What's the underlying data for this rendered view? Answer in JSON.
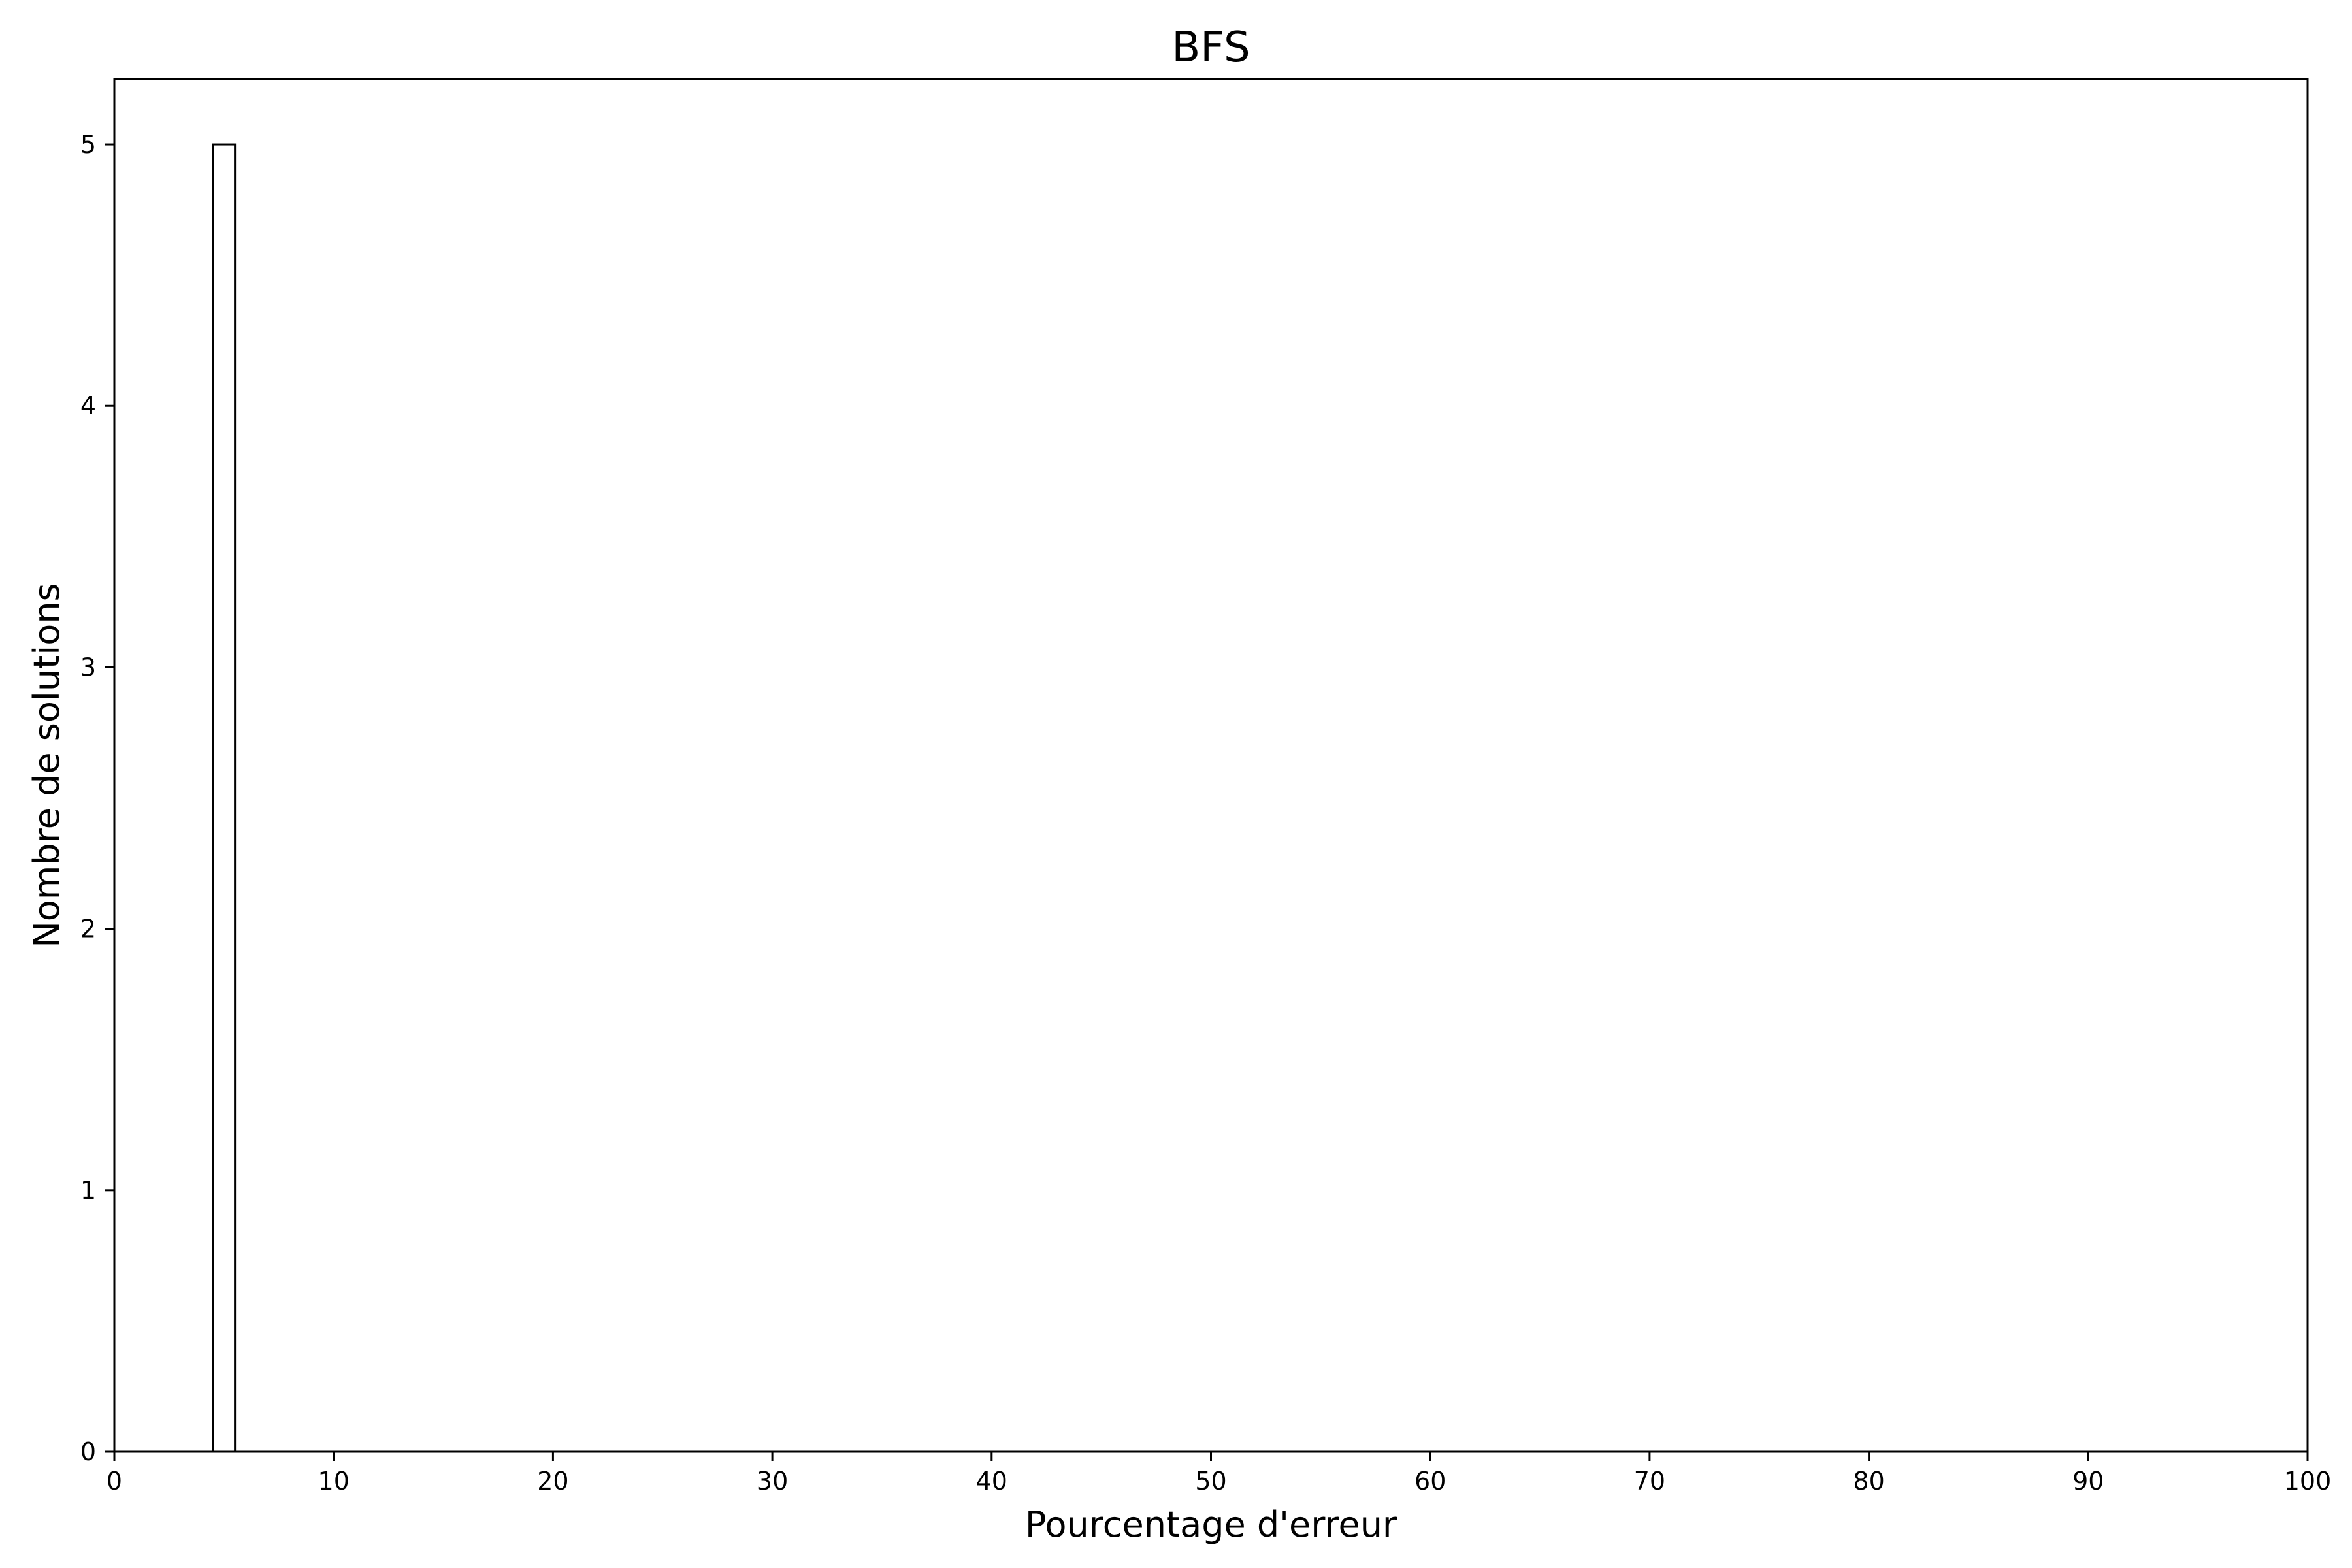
{
  "chart_data": {
    "type": "bar",
    "title": "BFS",
    "xlabel": "Pourcentage d'erreur",
    "ylabel": "Nombre de solutions",
    "xlim": [
      0,
      100
    ],
    "ylim": [
      0,
      5.25
    ],
    "xticks": [
      0,
      10,
      20,
      30,
      40,
      50,
      60,
      70,
      80,
      90,
      100
    ],
    "yticks": [
      0,
      1,
      2,
      3,
      4,
      5
    ],
    "bins": [
      {
        "x_start": 4.5,
        "x_end": 5.5,
        "value": 5
      }
    ],
    "bar_fill": "#ffffff",
    "bar_edge": "#000000",
    "grid": false,
    "legend": "none"
  }
}
